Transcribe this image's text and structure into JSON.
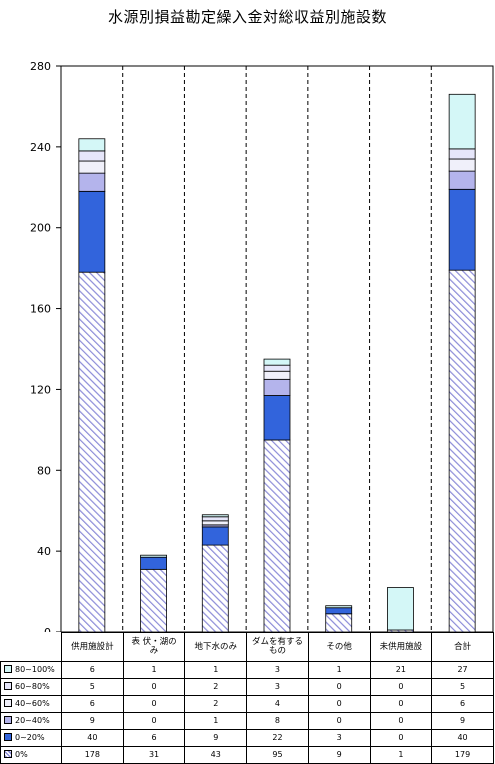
{
  "title": "水源別損益勘定繰入金対総収益別施設数",
  "colors": {
    "80~100%": "#d4f7f7",
    "60~80%": "#e6e6fa",
    "40~60%": "#f0f0fa",
    "20~40%": "#b4b4ec",
    "0~20%": "#3264dc",
    "0%": "#ffffff",
    "hatch": "#8c8cd8"
  },
  "chart_data": {
    "type": "bar",
    "stacked": true,
    "title": "水源別損益勘定繰入金対総収益別施設数",
    "categories": [
      "供用施設計",
      "表 伏・湖の\nみ",
      "地下水のみ",
      "ダムを有する\nもの",
      "その他",
      "未供用施設",
      "合計"
    ],
    "ylim": [
      0,
      280
    ],
    "yticks": [
      0,
      40,
      80,
      120,
      160,
      200,
      240,
      280
    ],
    "grid": false,
    "separators": "dashed vertical lines between groups",
    "series": [
      {
        "name": "0%",
        "values": [
          178,
          31,
          43,
          95,
          9,
          1,
          179
        ]
      },
      {
        "name": "0~20%",
        "values": [
          40,
          6,
          9,
          22,
          3,
          0,
          40
        ]
      },
      {
        "name": "20~40%",
        "values": [
          9,
          0,
          1,
          8,
          0,
          0,
          9
        ]
      },
      {
        "name": "40~60%",
        "values": [
          6,
          0,
          2,
          4,
          0,
          0,
          6
        ]
      },
      {
        "name": "60~80%",
        "values": [
          5,
          0,
          2,
          3,
          0,
          0,
          5
        ]
      },
      {
        "name": "80~100%",
        "values": [
          6,
          1,
          1,
          3,
          1,
          21,
          27
        ]
      }
    ],
    "table_row_order": [
      "80~100%",
      "60~80%",
      "40~60%",
      "20~40%",
      "0~20%",
      "0%"
    ]
  }
}
